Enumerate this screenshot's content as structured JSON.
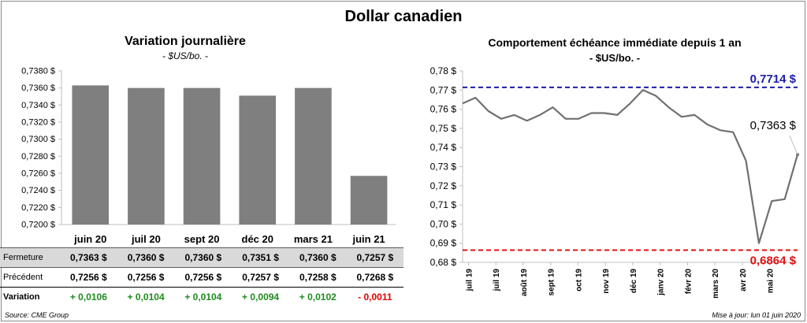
{
  "title": "Dollar canadien",
  "left_chart": {
    "title": "Variation  journalière",
    "subtitle": "- $US/bo. -"
  },
  "right_chart": {
    "title": "Comportement échéance immédiate depuis 1 an",
    "subtitle": "- $US/bo. -",
    "annotations": {
      "max_label": "0,7714 $",
      "min_label": "0,6864 $",
      "last_label": "0,7363 $"
    }
  },
  "table": {
    "rows": [
      {
        "label": "Fermeture",
        "values": [
          "0,7363  $",
          "0,7360  $",
          "0,7360  $",
          "0,7351  $",
          "0,7360  $",
          "0,7257  $"
        ]
      },
      {
        "label": "Précédent",
        "values": [
          "0,7256  $",
          "0,7256  $",
          "0,7256  $",
          "0,7257  $",
          "0,7258  $",
          "0,7268  $"
        ]
      },
      {
        "label": "Variation",
        "values": [
          "+ 0,0106",
          "+ 0,0104",
          "+ 0,0104",
          "+ 0,0094",
          "+ 0,0102",
          "- 0,0011"
        ]
      }
    ]
  },
  "footer": {
    "source": "Source: CME Group",
    "updated": "Mise à jour: lun 01 juin 2020"
  },
  "colors": {
    "bar": "#7f7f7f",
    "line": "#707070",
    "max_line": "#1c1caa",
    "min_line": "#e01010",
    "positive": "#1e8b1e",
    "negative": "#e00000"
  },
  "chart_data": [
    {
      "type": "bar",
      "categories": [
        "juin 20",
        "juil 20",
        "sept 20",
        "déc 20",
        "mars 21",
        "juin 21"
      ],
      "values": [
        0.7363,
        0.736,
        0.736,
        0.7351,
        0.736,
        0.7257
      ],
      "ylim": [
        0.72,
        0.738
      ],
      "yticks": [
        0.72,
        0.722,
        0.724,
        0.726,
        0.728,
        0.73,
        0.732,
        0.734,
        0.736,
        0.738
      ],
      "ytick_labels": [
        "0,7200 $",
        "0,7220 $",
        "0,7240 $",
        "0,7260 $",
        "0,7280 $",
        "0,7300 $",
        "0,7320 $",
        "0,7340 $",
        "0,7360 $",
        "0,7380 $"
      ],
      "grid": false
    },
    {
      "type": "line",
      "x_labels": [
        "juil 19",
        "juil 19",
        "août 19",
        "sept 19",
        "oct 19",
        "nov 19",
        "déc 19",
        "janv 20",
        "févr 20",
        "mars 20",
        "avr 20",
        "mai 20"
      ],
      "x": [
        0,
        10,
        20,
        30,
        40,
        50,
        60,
        70,
        80,
        90,
        100,
        110,
        120,
        130,
        140,
        150,
        160,
        170,
        180,
        190,
        200,
        210,
        220,
        230,
        240,
        250,
        260
      ],
      "values": [
        0.763,
        0.766,
        0.759,
        0.755,
        0.757,
        0.754,
        0.757,
        0.761,
        0.755,
        0.755,
        0.758,
        0.758,
        0.757,
        0.763,
        0.77,
        0.767,
        0.761,
        0.756,
        0.757,
        0.752,
        0.749,
        0.748,
        0.733,
        0.69,
        0.712,
        0.713,
        0.7363
      ],
      "ylim": [
        0.68,
        0.78
      ],
      "yticks": [
        0.68,
        0.69,
        0.7,
        0.71,
        0.72,
        0.73,
        0.74,
        0.75,
        0.76,
        0.77,
        0.78
      ],
      "ytick_labels": [
        "0,68 $",
        "0,69 $",
        "0,70 $",
        "0,71 $",
        "0,72 $",
        "0,73 $",
        "0,74 $",
        "0,75 $",
        "0,76 $",
        "0,77 $",
        "0,78 $"
      ],
      "reference_lines": [
        {
          "value": 0.7714,
          "color": "#1c1caa",
          "style": "dashed"
        },
        {
          "value": 0.6864,
          "color": "#e01010",
          "style": "dashed"
        }
      ],
      "grid": false
    }
  ]
}
